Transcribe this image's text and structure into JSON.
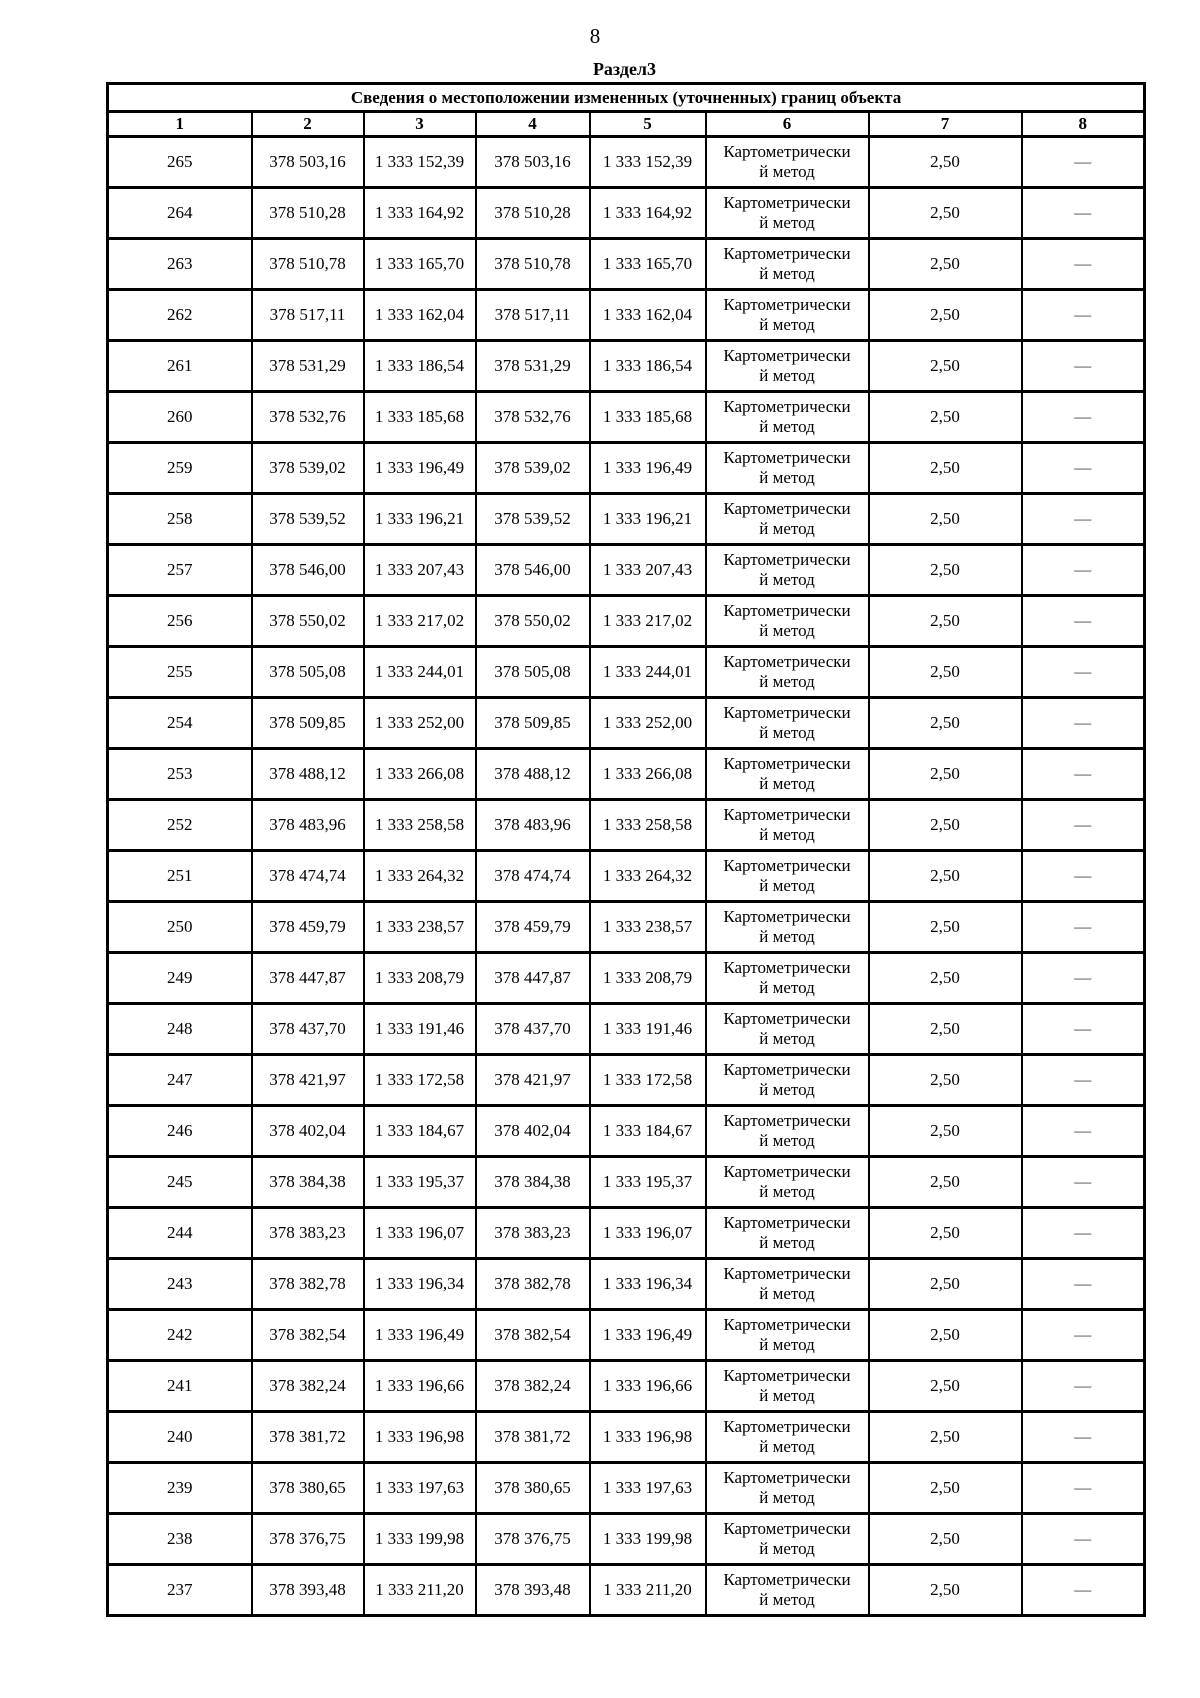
{
  "page": {
    "number": "8",
    "section_heading": "Раздел3"
  },
  "table": {
    "title": "Сведения о местоположении измененных (уточненных) границ объекта",
    "column_numbers": [
      "1",
      "2",
      "3",
      "4",
      "5",
      "6",
      "7",
      "8"
    ],
    "method": "Картометрический метод",
    "method_lines": [
      "Картометрически",
      "й метод"
    ],
    "accuracy": "2,50",
    "dash": "—",
    "rows": [
      {
        "n": "265",
        "x": "378 503,16",
        "y": "1 333 152,39"
      },
      {
        "n": "264",
        "x": "378 510,28",
        "y": "1 333 164,92"
      },
      {
        "n": "263",
        "x": "378 510,78",
        "y": "1 333 165,70"
      },
      {
        "n": "262",
        "x": "378 517,11",
        "y": "1 333 162,04"
      },
      {
        "n": "261",
        "x": "378 531,29",
        "y": "1 333 186,54"
      },
      {
        "n": "260",
        "x": "378 532,76",
        "y": "1 333 185,68"
      },
      {
        "n": "259",
        "x": "378 539,02",
        "y": "1 333 196,49"
      },
      {
        "n": "258",
        "x": "378 539,52",
        "y": "1 333 196,21"
      },
      {
        "n": "257",
        "x": "378 546,00",
        "y": "1 333 207,43"
      },
      {
        "n": "256",
        "x": "378 550,02",
        "y": "1 333 217,02"
      },
      {
        "n": "255",
        "x": "378 505,08",
        "y": "1 333 244,01"
      },
      {
        "n": "254",
        "x": "378 509,85",
        "y": "1 333 252,00"
      },
      {
        "n": "253",
        "x": "378 488,12",
        "y": "1 333 266,08"
      },
      {
        "n": "252",
        "x": "378 483,96",
        "y": "1 333 258,58"
      },
      {
        "n": "251",
        "x": "378 474,74",
        "y": "1 333 264,32"
      },
      {
        "n": "250",
        "x": "378 459,79",
        "y": "1 333 238,57"
      },
      {
        "n": "249",
        "x": "378 447,87",
        "y": "1 333 208,79"
      },
      {
        "n": "248",
        "x": "378 437,70",
        "y": "1 333 191,46"
      },
      {
        "n": "247",
        "x": "378 421,97",
        "y": "1 333 172,58"
      },
      {
        "n": "246",
        "x": "378 402,04",
        "y": "1 333 184,67"
      },
      {
        "n": "245",
        "x": "378 384,38",
        "y": "1 333 195,37"
      },
      {
        "n": "244",
        "x": "378 383,23",
        "y": "1 333 196,07"
      },
      {
        "n": "243",
        "x": "378 382,78",
        "y": "1 333 196,34"
      },
      {
        "n": "242",
        "x": "378 382,54",
        "y": "1 333 196,49"
      },
      {
        "n": "241",
        "x": "378 382,24",
        "y": "1 333 196,66"
      },
      {
        "n": "240",
        "x": "378 381,72",
        "y": "1 333 196,98"
      },
      {
        "n": "239",
        "x": "378 380,65",
        "y": "1 333 197,63"
      },
      {
        "n": "238",
        "x": "378 376,75",
        "y": "1 333 199,98"
      },
      {
        "n": "237",
        "x": "378 393,48",
        "y": "1 333 211,20"
      }
    ]
  }
}
